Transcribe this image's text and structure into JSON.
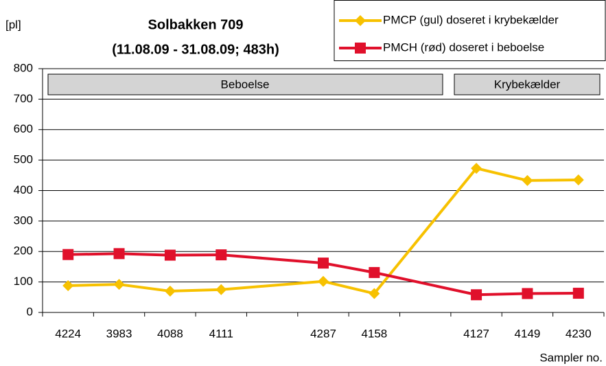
{
  "chart_data": {
    "type": "line",
    "title": "Solbakken 709",
    "subtitle": "(11.08.09 - 31.08.09; 483h)",
    "y_label": "[pl]",
    "x_label": "Sampler no.",
    "annotations": [
      "Beboelse",
      "Krybekælder"
    ],
    "categories": [
      "4224",
      "3983",
      "4088",
      "4111",
      null,
      "4287",
      "4158",
      null,
      "4127",
      "4149",
      "4230"
    ],
    "series": [
      {
        "name": "PMCP (gul) doseret i krybekælder",
        "color": "#f7c100",
        "marker": "diamond",
        "values": [
          88,
          92,
          70,
          75,
          null,
          102,
          62,
          null,
          473,
          433,
          435
        ]
      },
      {
        "name": "PMCH (rød) doseret i beboelse",
        "color": "#e0102b",
        "marker": "square",
        "values": [
          190,
          193,
          188,
          189,
          null,
          162,
          131,
          null,
          58,
          62,
          63
        ]
      }
    ],
    "ylim": [
      0,
      800
    ],
    "yticks": [
      0,
      100,
      200,
      300,
      400,
      500,
      600,
      700,
      800
    ],
    "grid": true
  }
}
